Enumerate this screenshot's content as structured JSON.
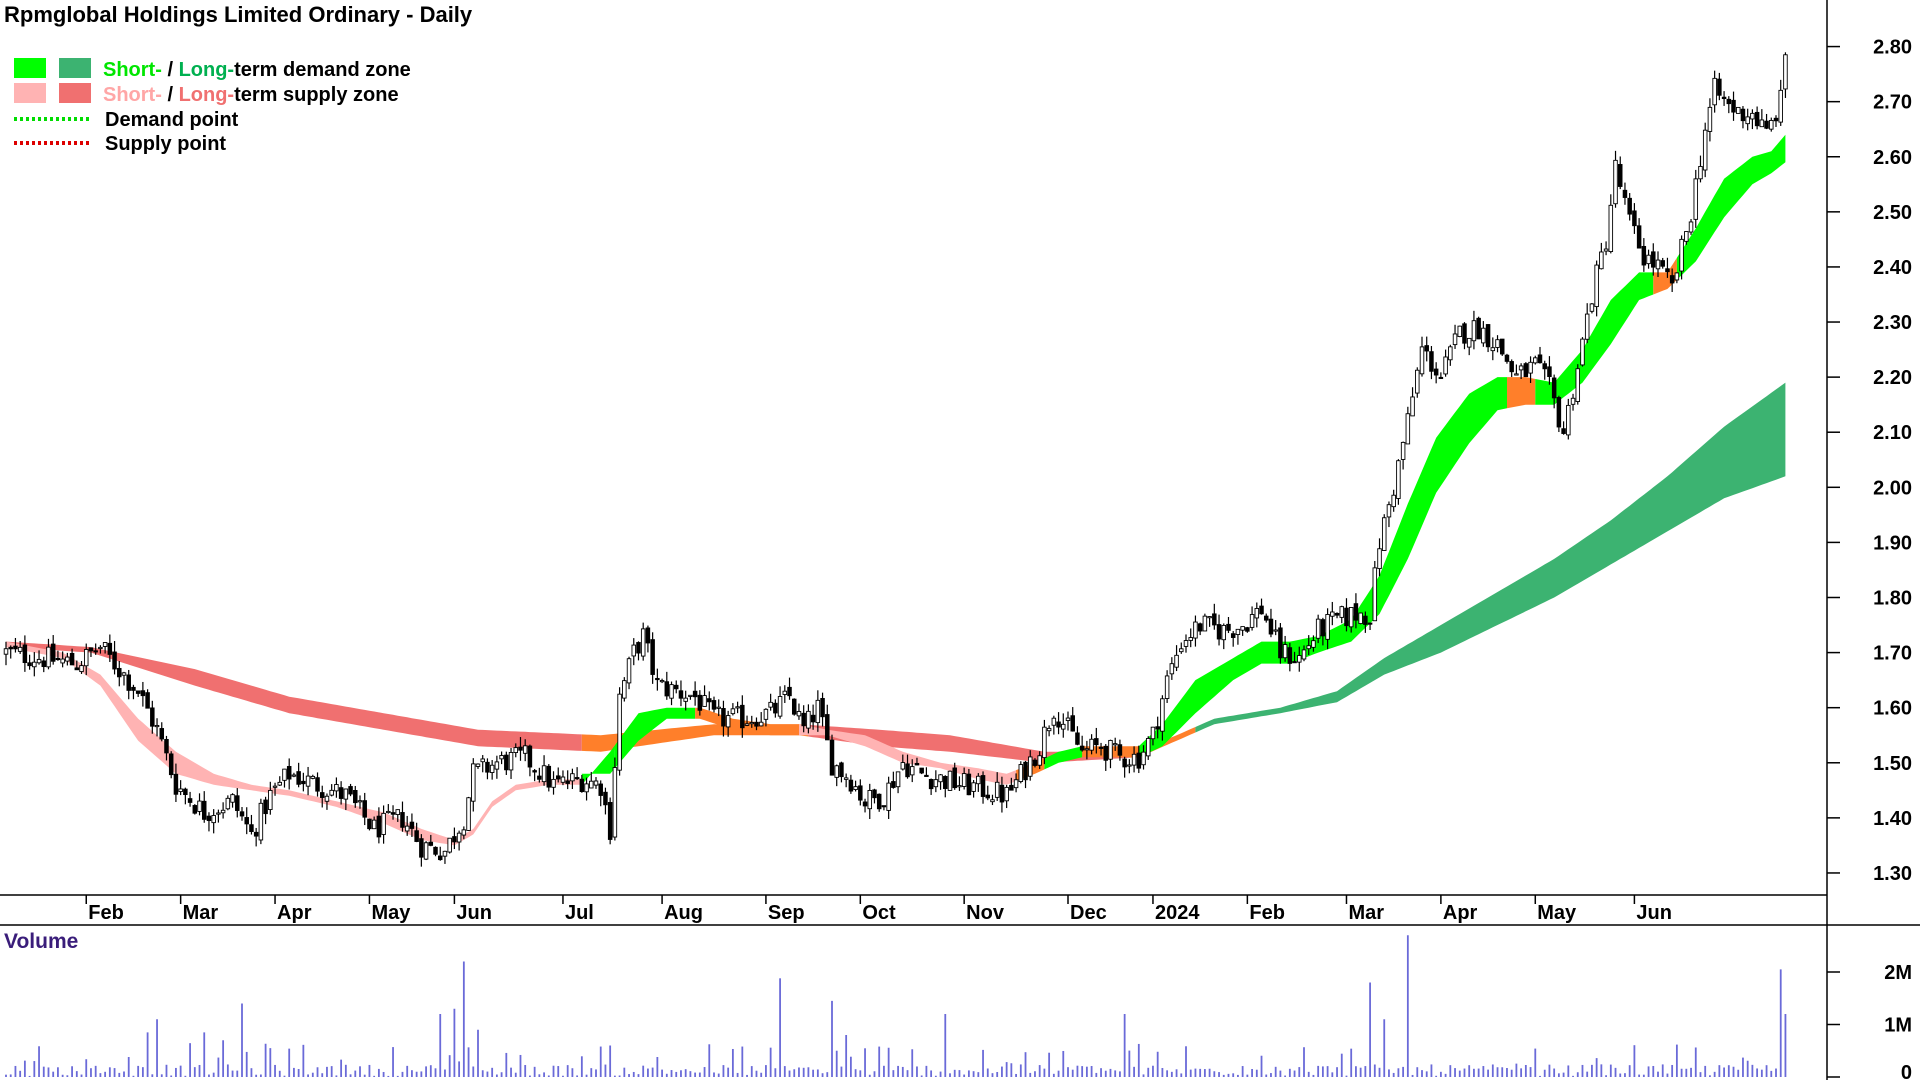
{
  "chart_data": {
    "type": "candlestick",
    "title": "Rpmglobal Holdings Limited Ordinary - Daily",
    "legend": [
      {
        "key": "demand_zone",
        "text_parts": [
          {
            "text": "Short-",
            "color": "#00e600"
          },
          {
            "text": " / ",
            "color": "#000000"
          },
          {
            "text": "Long-",
            "color": "#00b050"
          },
          {
            "text": "term demand zone",
            "color": "#000000"
          }
        ],
        "swatches": [
          "#00ff00",
          "#3cb371"
        ]
      },
      {
        "key": "supply_zone",
        "text_parts": [
          {
            "text": "Short-",
            "color": "#ffa6a6"
          },
          {
            "text": " / ",
            "color": "#000000"
          },
          {
            "text": "Long-",
            "color": "#f07070"
          },
          {
            "text": "term supply zone",
            "color": "#000000"
          }
        ],
        "swatches": [
          "#ffb3b3",
          "#f07070"
        ]
      },
      {
        "key": "demand_point",
        "text": "Demand point",
        "color": "#00dd00",
        "style": "dotted"
      },
      {
        "key": "supply_point",
        "text": "Supply point",
        "color": "#dd0000",
        "style": "dotted"
      }
    ],
    "x_labels": [
      "Feb",
      "Mar",
      "Apr",
      "May",
      "Jun",
      "Jul",
      "Aug",
      "Sep",
      "Oct",
      "Nov",
      "Dec",
      "2024",
      "Feb",
      "Mar",
      "Apr",
      "May",
      "Jun"
    ],
    "price_axis": {
      "ticks": [
        "1.30",
        "1.40",
        "1.50",
        "1.60",
        "1.70",
        "1.80",
        "1.90",
        "2.00",
        "2.10",
        "2.20",
        "2.30",
        "2.40",
        "2.50",
        "2.60",
        "2.70",
        "2.80"
      ],
      "ylim": [
        1.26,
        2.87
      ]
    },
    "volume_panel": {
      "label": "Volume",
      "ticks": [
        "2M",
        "1M",
        "0"
      ],
      "ylim": [
        0,
        2800000
      ]
    },
    "colors": {
      "candle": "#000000",
      "volume_bar": "#6a6ad8",
      "short_demand": "#00ff00",
      "long_demand": "#3cb371",
      "short_supply": "#ffb3b3",
      "long_supply": "#f07070",
      "transition": "#ff7f2a",
      "grid_line": "#000000"
    },
    "series_anchors": {
      "price_close": [
        [
          0,
          1.7
        ],
        [
          8,
          1.69
        ],
        [
          15,
          1.68
        ],
        [
          20,
          1.71
        ],
        [
          28,
          1.63
        ],
        [
          32,
          1.56
        ],
        [
          36,
          1.46
        ],
        [
          42,
          1.41
        ],
        [
          48,
          1.43
        ],
        [
          52,
          1.37
        ],
        [
          56,
          1.44
        ],
        [
          60,
          1.48
        ],
        [
          66,
          1.46
        ],
        [
          72,
          1.44
        ],
        [
          78,
          1.38
        ],
        [
          84,
          1.4
        ],
        [
          88,
          1.35
        ],
        [
          93,
          1.34
        ],
        [
          97,
          1.4
        ],
        [
          99,
          1.48
        ],
        [
          104,
          1.5
        ],
        [
          110,
          1.51
        ],
        [
          116,
          1.46
        ],
        [
          122,
          1.47
        ],
        [
          126,
          1.46
        ],
        [
          128,
          1.38
        ],
        [
          130,
          1.62
        ],
        [
          133,
          1.7
        ],
        [
          135,
          1.73
        ],
        [
          138,
          1.64
        ],
        [
          142,
          1.63
        ],
        [
          146,
          1.62
        ],
        [
          150,
          1.58
        ],
        [
          156,
          1.58
        ],
        [
          162,
          1.59
        ],
        [
          166,
          1.62
        ],
        [
          169,
          1.56
        ],
        [
          172,
          1.6
        ],
        [
          175,
          1.5
        ],
        [
          179,
          1.47
        ],
        [
          182,
          1.43
        ],
        [
          186,
          1.44
        ],
        [
          190,
          1.5
        ],
        [
          194,
          1.48
        ],
        [
          198,
          1.47
        ],
        [
          203,
          1.46
        ],
        [
          208,
          1.45
        ],
        [
          212,
          1.44
        ],
        [
          216,
          1.49
        ],
        [
          219,
          1.53
        ],
        [
          222,
          1.6
        ],
        [
          225,
          1.56
        ],
        [
          228,
          1.52
        ],
        [
          232,
          1.53
        ],
        [
          236,
          1.51
        ],
        [
          240,
          1.51
        ],
        [
          243,
          1.55
        ],
        [
          246,
          1.65
        ],
        [
          249,
          1.72
        ],
        [
          253,
          1.75
        ],
        [
          258,
          1.74
        ],
        [
          262,
          1.75
        ],
        [
          266,
          1.78
        ],
        [
          270,
          1.7
        ],
        [
          274,
          1.69
        ],
        [
          278,
          1.74
        ],
        [
          282,
          1.76
        ],
        [
          286,
          1.77
        ],
        [
          289,
          1.77
        ],
        [
          291,
          1.9
        ],
        [
          294,
          2.0
        ],
        [
          297,
          2.12
        ],
        [
          300,
          2.25
        ],
        [
          304,
          2.2
        ],
        [
          308,
          2.28
        ],
        [
          312,
          2.29
        ],
        [
          316,
          2.26
        ],
        [
          320,
          2.2
        ],
        [
          324,
          2.22
        ],
        [
          327,
          2.18
        ],
        [
          330,
          2.1
        ],
        [
          333,
          2.22
        ],
        [
          336,
          2.35
        ],
        [
          339,
          2.45
        ],
        [
          341,
          2.58
        ],
        [
          344,
          2.48
        ],
        [
          347,
          2.42
        ],
        [
          350,
          2.4
        ],
        [
          353,
          2.36
        ],
        [
          357,
          2.5
        ],
        [
          360,
          2.65
        ],
        [
          362,
          2.72
        ],
        [
          364,
          2.7
        ],
        [
          367,
          2.68
        ],
        [
          370,
          2.68
        ],
        [
          373,
          2.64
        ],
        [
          376,
          2.7
        ],
        [
          377,
          2.79
        ]
      ],
      "short_demand_zone": [
        [
          122,
          1.46,
          1.48
        ],
        [
          128,
          1.52,
          1.48
        ],
        [
          134,
          1.59,
          1.54
        ],
        [
          140,
          1.6,
          1.58
        ],
        [
          147,
          1.6,
          1.58
        ],
        [
          154,
          1.58,
          1.56
        ],
        [
          162,
          1.57,
          1.55
        ],
        [
          168,
          1.57,
          1.55
        ],
        [
          174,
          1.56,
          1.55
        ],
        [
          182,
          1.55,
          1.53
        ],
        [
          190,
          1.52,
          1.5
        ],
        [
          198,
          1.5,
          1.49
        ],
        [
          206,
          1.49,
          1.47
        ],
        [
          212,
          1.48,
          1.46
        ],
        [
          218,
          1.5,
          1.48
        ],
        [
          223,
          1.52,
          1.5
        ],
        [
          228,
          1.53,
          1.51
        ],
        [
          234,
          1.53,
          1.51
        ],
        [
          240,
          1.53,
          1.51
        ],
        [
          245,
          1.57,
          1.53
        ],
        [
          252,
          1.65,
          1.59
        ],
        [
          260,
          1.69,
          1.65
        ],
        [
          266,
          1.72,
          1.68
        ],
        [
          272,
          1.72,
          1.68
        ],
        [
          278,
          1.73,
          1.7
        ],
        [
          285,
          1.76,
          1.72
        ],
        [
          291,
          1.84,
          1.77
        ],
        [
          297,
          1.97,
          1.87
        ],
        [
          303,
          2.09,
          1.99
        ],
        [
          310,
          2.17,
          2.08
        ],
        [
          316,
          2.2,
          2.14
        ],
        [
          322,
          2.2,
          2.15
        ],
        [
          328,
          2.19,
          2.15
        ],
        [
          334,
          2.25,
          2.19
        ],
        [
          340,
          2.34,
          2.26
        ],
        [
          346,
          2.39,
          2.34
        ],
        [
          352,
          2.39,
          2.36
        ],
        [
          358,
          2.47,
          2.41
        ],
        [
          364,
          2.56,
          2.49
        ],
        [
          370,
          2.6,
          2.55
        ],
        [
          374,
          2.61,
          2.57
        ],
        [
          377,
          2.64,
          2.59
        ]
      ],
      "long_demand_zone": [
        [
          0,
          1.72,
          1.71
        ],
        [
          18,
          1.71,
          1.7
        ],
        [
          40,
          1.67,
          1.64
        ],
        [
          60,
          1.62,
          1.59
        ],
        [
          80,
          1.59,
          1.56
        ],
        [
          100,
          1.56,
          1.53
        ],
        [
          126,
          1.55,
          1.52
        ],
        [
          150,
          1.57,
          1.55
        ],
        [
          168,
          1.57,
          1.55
        ],
        [
          185,
          1.56,
          1.53
        ],
        [
          200,
          1.55,
          1.52
        ],
        [
          220,
          1.52,
          1.5
        ],
        [
          240,
          1.52,
          1.51
        ],
        [
          256,
          1.58,
          1.57
        ],
        [
          270,
          1.6,
          1.59
        ],
        [
          282,
          1.63,
          1.61
        ],
        [
          292,
          1.69,
          1.66
        ],
        [
          304,
          1.75,
          1.7
        ],
        [
          316,
          1.81,
          1.75
        ],
        [
          328,
          1.87,
          1.8
        ],
        [
          340,
          1.94,
          1.86
        ],
        [
          352,
          2.02,
          1.92
        ],
        [
          364,
          2.11,
          1.98
        ],
        [
          377,
          2.19,
          2.02
        ]
      ],
      "regime_short_demand": [
        [
          122,
          null
        ],
        [
          129,
          "transition"
        ],
        [
          134,
          "demand"
        ],
        [
          140,
          "transition"
        ],
        [
          146,
          "demand"
        ],
        [
          150,
          "transition"
        ],
        [
          168,
          "supply"
        ],
        [
          214,
          "transition"
        ],
        [
          220,
          "demand"
        ],
        [
          228,
          "transition"
        ],
        [
          240,
          "demand"
        ],
        [
          268,
          "transition"
        ],
        [
          270,
          "demand"
        ],
        [
          318,
          "transition"
        ],
        [
          324,
          "demand"
        ],
        [
          349,
          "transition"
        ],
        [
          354,
          "demand"
        ]
      ],
      "volume_spikes": [
        [
          30,
          0.85
        ],
        [
          32,
          1.1
        ],
        [
          42,
          0.85
        ],
        [
          46,
          0.7
        ],
        [
          50,
          1.4
        ],
        [
          56,
          0.55
        ],
        [
          92,
          1.2
        ],
        [
          95,
          1.3
        ],
        [
          97,
          2.2
        ],
        [
          100,
          0.9
        ],
        [
          128,
          0.6
        ],
        [
          164,
          1.88
        ],
        [
          175,
          1.45
        ],
        [
          178,
          0.8
        ],
        [
          199,
          1.2
        ],
        [
          237,
          1.2
        ],
        [
          289,
          1.8
        ],
        [
          292,
          1.1
        ],
        [
          297,
          2.7
        ],
        [
          376,
          2.05
        ],
        [
          377,
          1.2
        ]
      ]
    }
  }
}
